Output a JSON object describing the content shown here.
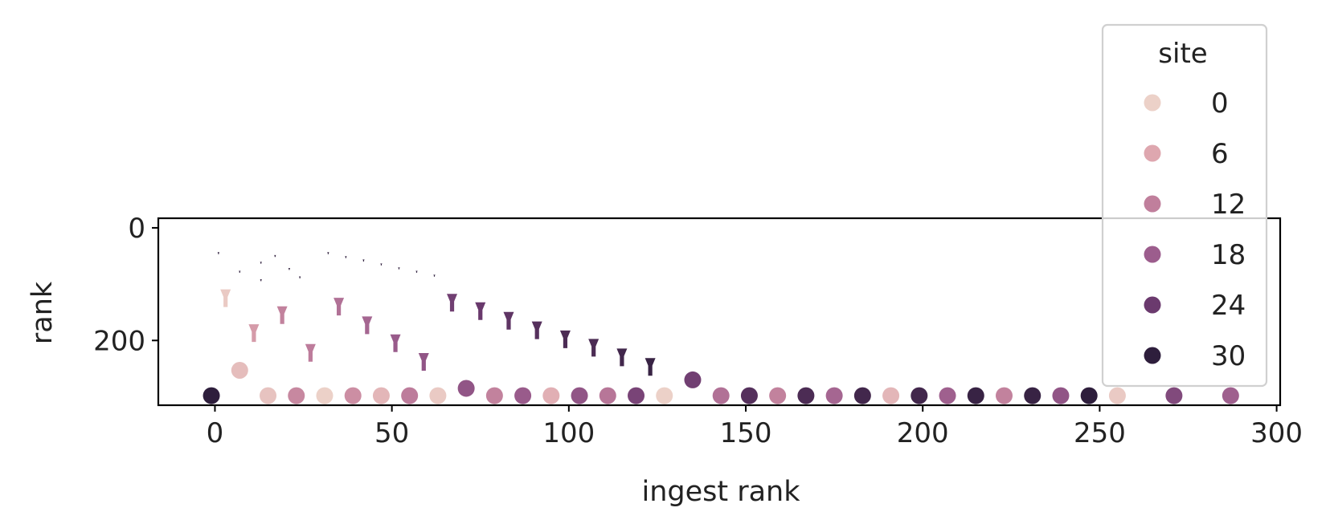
{
  "chart_data": {
    "type": "scatter",
    "xlabel": "ingest rank",
    "ylabel": "rank",
    "xlim": [
      -16,
      301
    ],
    "ylim": [
      315,
      -17
    ],
    "y_inverted": true,
    "xticks": [
      0,
      50,
      100,
      150,
      200,
      250,
      300
    ],
    "yticks": [
      0,
      200
    ],
    "grid": false,
    "legend": {
      "title": "site",
      "placement": "upper-right",
      "entries": [
        {
          "label": "0",
          "color": "#ecd1c8"
        },
        {
          "label": "6",
          "color": "#dea7af"
        },
        {
          "label": "12",
          "color": "#c07f9c"
        },
        {
          "label": "18",
          "color": "#9c5d8d"
        },
        {
          "label": "24",
          "color": "#6b3a6e"
        },
        {
          "label": "30",
          "color": "#2e1e3c"
        }
      ]
    },
    "colorbar_domain": [
      0,
      31
    ],
    "points": [
      {
        "x": -1,
        "y": 298,
        "site": 31
      },
      {
        "x": 7,
        "y": 253,
        "site": 3
      },
      {
        "x": 15,
        "y": 298,
        "site": 2
      },
      {
        "x": 23,
        "y": 298,
        "site": 11
      },
      {
        "x": 31,
        "y": 298,
        "site": 0
      },
      {
        "x": 39,
        "y": 298,
        "site": 10
      },
      {
        "x": 47,
        "y": 298,
        "site": 4
      },
      {
        "x": 55,
        "y": 298,
        "site": 13
      },
      {
        "x": 63,
        "y": 298,
        "site": 1
      },
      {
        "x": 71,
        "y": 285,
        "site": 20
      },
      {
        "x": 79,
        "y": 298,
        "site": 12
      },
      {
        "x": 87,
        "y": 298,
        "site": 19
      },
      {
        "x": 95,
        "y": 298,
        "site": 5
      },
      {
        "x": 103,
        "y": 298,
        "site": 20
      },
      {
        "x": 111,
        "y": 298,
        "site": 14
      },
      {
        "x": 119,
        "y": 298,
        "site": 23
      },
      {
        "x": 127,
        "y": 298,
        "site": 0
      },
      {
        "x": 135,
        "y": 270,
        "site": 24
      },
      {
        "x": 143,
        "y": 298,
        "site": 15
      },
      {
        "x": 151,
        "y": 298,
        "site": 27
      },
      {
        "x": 159,
        "y": 298,
        "site": 12
      },
      {
        "x": 167,
        "y": 298,
        "site": 28
      },
      {
        "x": 175,
        "y": 298,
        "site": 17
      },
      {
        "x": 183,
        "y": 298,
        "site": 29
      },
      {
        "x": 191,
        "y": 298,
        "site": 4
      },
      {
        "x": 199,
        "y": 298,
        "site": 29
      },
      {
        "x": 207,
        "y": 298,
        "site": 18
      },
      {
        "x": 215,
        "y": 298,
        "site": 30
      },
      {
        "x": 223,
        "y": 298,
        "site": 12
      },
      {
        "x": 231,
        "y": 298,
        "site": 30
      },
      {
        "x": 239,
        "y": 298,
        "site": 20
      },
      {
        "x": 247,
        "y": 298,
        "site": 31
      },
      {
        "x": 255,
        "y": 298,
        "site": 1
      },
      {
        "x": 271,
        "y": 298,
        "site": 22
      },
      {
        "x": 287,
        "y": 298,
        "site": 18
      }
    ],
    "markers": [
      {
        "x": 3,
        "y": 125,
        "site": 1
      },
      {
        "x": 11,
        "y": 187,
        "site": 8
      },
      {
        "x": 19,
        "y": 155,
        "site": 12
      },
      {
        "x": 27,
        "y": 222,
        "site": 13
      },
      {
        "x": 35,
        "y": 140,
        "site": 15
      },
      {
        "x": 43,
        "y": 173,
        "site": 17
      },
      {
        "x": 51,
        "y": 205,
        "site": 19
      },
      {
        "x": 59,
        "y": 238,
        "site": 20
      },
      {
        "x": 67,
        "y": 133,
        "site": 24
      },
      {
        "x": 75,
        "y": 148,
        "site": 25
      },
      {
        "x": 83,
        "y": 165,
        "site": 26
      },
      {
        "x": 91,
        "y": 182,
        "site": 27
      },
      {
        "x": 99,
        "y": 198,
        "site": 28
      },
      {
        "x": 107,
        "y": 213,
        "site": 28
      },
      {
        "x": 115,
        "y": 230,
        "site": 29
      },
      {
        "x": 123,
        "y": 247,
        "site": 30
      },
      {
        "x": 1,
        "y": 45,
        "site": 31
      },
      {
        "x": 7,
        "y": 78,
        "site": 31
      },
      {
        "x": 13,
        "y": 62,
        "site": 31
      },
      {
        "x": 13,
        "y": 93,
        "site": 31
      },
      {
        "x": 17,
        "y": 50,
        "site": 31
      },
      {
        "x": 21,
        "y": 73,
        "site": 31
      },
      {
        "x": 24,
        "y": 88,
        "site": 31
      },
      {
        "x": 32,
        "y": 45,
        "site": 31
      },
      {
        "x": 37,
        "y": 52,
        "site": 31
      },
      {
        "x": 42,
        "y": 58,
        "site": 31
      },
      {
        "x": 47,
        "y": 65,
        "site": 31
      },
      {
        "x": 52,
        "y": 72,
        "site": 31
      },
      {
        "x": 57,
        "y": 78,
        "site": 31
      },
      {
        "x": 62,
        "y": 85,
        "site": 31
      }
    ]
  }
}
